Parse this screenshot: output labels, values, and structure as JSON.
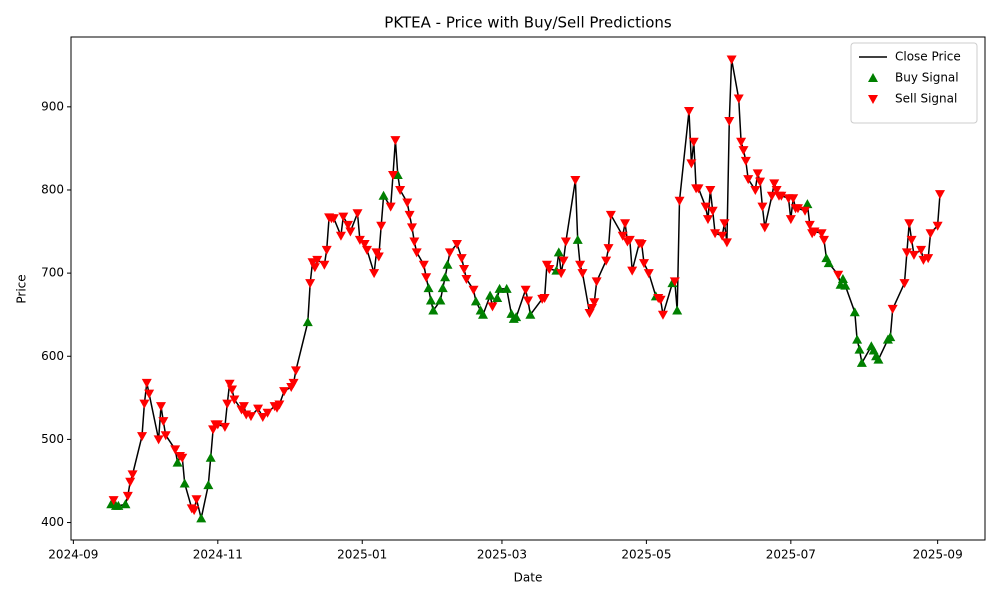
{
  "chart_data": {
    "type": "line",
    "title": "PKTEA - Price with Buy/Sell Predictions",
    "xlabel": "Date",
    "ylabel": "Price",
    "legend": "upper right",
    "xlim": [
      "2024-08-31",
      "2025-09-21"
    ],
    "ylim": [
      379,
      984
    ],
    "xticks": [
      {
        "value": "2024-09-01",
        "label": "2024-09"
      },
      {
        "value": "2024-11-01",
        "label": "2024-11"
      },
      {
        "value": "2025-01-01",
        "label": "2025-01"
      },
      {
        "value": "2025-03-01",
        "label": "2025-03"
      },
      {
        "value": "2025-05-01",
        "label": "2025-05"
      },
      {
        "value": "2025-07-01",
        "label": "2025-07"
      },
      {
        "value": "2025-09-01",
        "label": "2025-09"
      }
    ],
    "yticks": [
      400,
      500,
      600,
      700,
      800,
      900
    ],
    "series": [
      {
        "name": "Close Price",
        "color": "#000000",
        "marker": "line",
        "x": [
          "2024-09-17",
          "2024-09-18",
          "2024-09-19",
          "2024-09-20",
          "2024-09-23",
          "2024-09-24",
          "2024-09-25",
          "2024-09-26",
          "2024-09-30",
          "2024-10-01",
          "2024-10-02",
          "2024-10-03",
          "2024-10-07",
          "2024-10-08",
          "2024-10-09",
          "2024-10-10",
          "2024-10-14",
          "2024-10-15",
          "2024-10-16",
          "2024-10-17",
          "2024-10-18",
          "2024-10-21",
          "2024-10-22",
          "2024-10-23",
          "2024-10-25",
          "2024-10-28",
          "2024-10-29",
          "2024-10-30",
          "2024-10-31",
          "2024-11-01",
          "2024-11-04",
          "2024-11-05",
          "2024-11-06",
          "2024-11-07",
          "2024-11-08",
          "2024-11-11",
          "2024-11-12",
          "2024-11-13",
          "2024-11-15",
          "2024-11-18",
          "2024-11-20",
          "2024-11-22",
          "2024-11-25",
          "2024-11-26",
          "2024-11-27",
          "2024-11-29",
          "2024-12-02",
          "2024-12-03",
          "2024-12-04",
          "2024-12-09",
          "2024-12-10",
          "2024-12-11",
          "2024-12-12",
          "2024-12-13",
          "2024-12-16",
          "2024-12-17",
          "2024-12-18",
          "2024-12-19",
          "2024-12-20",
          "2024-12-23",
          "2024-12-24",
          "2024-12-26",
          "2024-12-27",
          "2024-12-30",
          "2024-12-31",
          "2025-01-02",
          "2025-01-03",
          "2025-01-06",
          "2025-01-07",
          "2025-01-08",
          "2025-01-09",
          "2025-01-10",
          "2025-01-13",
          "2025-01-14",
          "2025-01-15",
          "2025-01-16",
          "2025-01-17",
          "2025-01-20",
          "2025-01-21",
          "2025-01-22",
          "2025-01-23",
          "2025-01-24",
          "2025-01-27",
          "2025-01-28",
          "2025-01-29",
          "2025-01-30",
          "2025-01-31",
          "2025-02-03",
          "2025-02-04",
          "2025-02-05",
          "2025-02-06",
          "2025-02-07",
          "2025-02-10",
          "2025-02-12",
          "2025-02-13",
          "2025-02-14",
          "2025-02-17",
          "2025-02-18",
          "2025-02-20",
          "2025-02-21",
          "2025-02-24",
          "2025-02-25",
          "2025-02-27",
          "2025-02-28",
          "2025-03-03",
          "2025-03-05",
          "2025-03-06",
          "2025-03-07",
          "2025-03-11",
          "2025-03-12",
          "2025-03-13",
          "2025-03-18",
          "2025-03-19",
          "2025-03-20",
          "2025-03-21",
          "2025-03-24",
          "2025-03-25",
          "2025-03-26",
          "2025-03-27",
          "2025-03-28",
          "2025-04-01",
          "2025-04-02",
          "2025-04-03",
          "2025-04-04",
          "2025-04-07",
          "2025-04-08",
          "2025-04-09",
          "2025-04-10",
          "2025-04-14",
          "2025-04-15",
          "2025-04-16",
          "2025-04-21",
          "2025-04-22",
          "2025-04-23",
          "2025-04-24",
          "2025-04-25",
          "2025-04-28",
          "2025-04-29",
          "2025-04-30",
          "2025-05-02",
          "2025-05-05",
          "2025-05-06",
          "2025-05-07",
          "2025-05-08",
          "2025-05-12",
          "2025-05-13",
          "2025-05-14",
          "2025-05-15",
          "2025-05-19",
          "2025-05-20",
          "2025-05-21",
          "2025-05-22",
          "2025-05-23",
          "2025-05-26",
          "2025-05-27",
          "2025-05-28",
          "2025-05-29",
          "2025-05-30",
          "2025-06-02",
          "2025-06-03",
          "2025-06-04",
          "2025-06-05",
          "2025-06-06",
          "2025-06-09",
          "2025-06-10",
          "2025-06-11",
          "2025-06-12",
          "2025-06-13",
          "2025-06-16",
          "2025-06-17",
          "2025-06-18",
          "2025-06-19",
          "2025-06-20",
          "2025-06-23",
          "2025-06-24",
          "2025-06-25",
          "2025-06-26",
          "2025-06-27",
          "2025-06-30",
          "2025-07-01",
          "2025-07-02",
          "2025-07-03",
          "2025-07-04",
          "2025-07-07",
          "2025-07-08",
          "2025-07-09",
          "2025-07-10",
          "2025-07-11",
          "2025-07-14",
          "2025-07-15",
          "2025-07-16",
          "2025-07-17",
          "2025-07-21",
          "2025-07-22",
          "2025-07-23",
          "2025-07-24",
          "2025-07-28",
          "2025-07-29",
          "2025-07-30",
          "2025-07-31",
          "2025-08-04",
          "2025-08-05",
          "2025-08-06",
          "2025-08-07",
          "2025-08-11",
          "2025-08-12",
          "2025-08-13",
          "2025-08-18",
          "2025-08-19",
          "2025-08-20",
          "2025-08-21",
          "2025-08-22",
          "2025-08-25",
          "2025-08-26",
          "2025-08-28",
          "2025-08-29",
          "2025-09-01",
          "2025-09-02"
        ],
        "values": [
          422,
          427,
          420,
          420,
          422,
          432,
          449,
          458,
          504,
          543,
          568,
          555,
          500,
          540,
          522,
          505,
          488,
          472,
          480,
          478,
          447,
          417,
          415,
          428,
          405,
          445,
          478,
          512,
          518,
          518,
          515,
          543,
          567,
          560,
          548,
          536,
          540,
          530,
          528,
          537,
          527,
          532,
          540,
          538,
          542,
          558,
          563,
          568,
          583,
          641,
          688,
          713,
          707,
          716,
          710,
          728,
          767,
          766,
          766,
          745,
          768,
          758,
          750,
          772,
          740,
          735,
          728,
          700,
          725,
          720,
          757,
          793,
          780,
          818,
          860,
          818,
          800,
          785,
          770,
          755,
          738,
          725,
          710,
          695,
          682,
          667,
          655,
          667,
          682,
          695,
          710,
          725,
          735,
          718,
          705,
          693,
          680,
          666,
          655,
          650,
          673,
          660,
          670,
          681,
          681,
          651,
          645,
          647,
          680,
          667,
          650,
          669,
          670,
          710,
          705,
          703,
          725,
          700,
          715,
          738,
          812,
          740,
          710,
          700,
          652,
          658,
          665,
          690,
          715,
          730,
          770,
          745,
          760,
          738,
          740,
          703,
          736,
          735,
          712,
          700,
          672,
          670,
          668,
          650,
          688,
          690,
          655,
          787,
          895,
          832,
          858,
          802,
          802,
          780,
          765,
          800,
          775,
          748,
          745,
          760,
          737,
          883,
          957,
          910,
          858,
          848,
          835,
          813,
          800,
          820,
          810,
          780,
          755,
          793,
          808,
          800,
          793,
          793,
          790,
          765,
          790,
          778,
          778,
          775,
          783,
          758,
          748,
          750,
          748,
          740,
          718,
          712,
          698,
          686,
          693,
          685,
          653,
          620,
          608,
          592,
          612,
          607,
          600,
          596,
          620,
          623,
          657,
          688,
          725,
          760,
          740,
          722,
          728,
          716,
          718,
          748,
          757,
          795
        ]
      },
      {
        "name": "Buy Signal",
        "color": "#008000",
        "marker": "^",
        "x": [
          "2024-09-17",
          "2024-09-19",
          "2024-09-20",
          "2024-09-23",
          "2024-10-15",
          "2024-10-18",
          "2024-10-25",
          "2024-10-28",
          "2024-10-29",
          "2024-12-09",
          "2025-01-10",
          "2025-01-16",
          "2025-01-29",
          "2025-01-30",
          "2025-01-31",
          "2025-02-03",
          "2025-02-04",
          "2025-02-05",
          "2025-02-06",
          "2025-02-18",
          "2025-02-20",
          "2025-02-21",
          "2025-02-24",
          "2025-02-27",
          "2025-02-28",
          "2025-03-03",
          "2025-03-05",
          "2025-03-06",
          "2025-03-07",
          "2025-03-13",
          "2025-03-24",
          "2025-03-25",
          "2025-04-02",
          "2025-05-05",
          "2025-05-12",
          "2025-05-14",
          "2025-07-08",
          "2025-07-16",
          "2025-07-17",
          "2025-07-22",
          "2025-07-23",
          "2025-07-24",
          "2025-07-28",
          "2025-07-29",
          "2025-07-30",
          "2025-07-31",
          "2025-08-04",
          "2025-08-05",
          "2025-08-06",
          "2025-08-07",
          "2025-08-11",
          "2025-08-12"
        ],
        "values": [
          422,
          420,
          420,
          422,
          472,
          447,
          405,
          445,
          478,
          641,
          793,
          818,
          682,
          667,
          655,
          667,
          682,
          695,
          710,
          666,
          655,
          650,
          673,
          670,
          681,
          681,
          651,
          645,
          647,
          650,
          703,
          725,
          740,
          672,
          688,
          655,
          783,
          718,
          712,
          686,
          693,
          685,
          653,
          620,
          608,
          592,
          612,
          607,
          600,
          596,
          620,
          623
        ]
      },
      {
        "name": "Sell Signal",
        "color": "#ff0000",
        "marker": "v",
        "x": [
          "2024-09-18",
          "2024-09-24",
          "2024-09-25",
          "2024-09-26",
          "2024-09-30",
          "2024-10-01",
          "2024-10-02",
          "2024-10-03",
          "2024-10-07",
          "2024-10-08",
          "2024-10-09",
          "2024-10-10",
          "2024-10-14",
          "2024-10-16",
          "2024-10-17",
          "2024-10-21",
          "2024-10-22",
          "2024-10-23",
          "2024-10-30",
          "2024-10-31",
          "2024-11-01",
          "2024-11-04",
          "2024-11-05",
          "2024-11-06",
          "2024-11-07",
          "2024-11-08",
          "2024-11-11",
          "2024-11-12",
          "2024-11-13",
          "2024-11-15",
          "2024-11-18",
          "2024-11-20",
          "2024-11-22",
          "2024-11-25",
          "2024-11-26",
          "2024-11-27",
          "2024-11-29",
          "2024-12-02",
          "2024-12-03",
          "2024-12-04",
          "2024-12-10",
          "2024-12-11",
          "2024-12-12",
          "2024-12-13",
          "2024-12-16",
          "2024-12-17",
          "2024-12-18",
          "2024-12-19",
          "2024-12-20",
          "2024-12-23",
          "2024-12-24",
          "2024-12-26",
          "2024-12-27",
          "2024-12-30",
          "2024-12-31",
          "2025-01-02",
          "2025-01-03",
          "2025-01-06",
          "2025-01-07",
          "2025-01-08",
          "2025-01-09",
          "2025-01-13",
          "2025-01-14",
          "2025-01-15",
          "2025-01-17",
          "2025-01-20",
          "2025-01-21",
          "2025-01-22",
          "2025-01-23",
          "2025-01-24",
          "2025-01-27",
          "2025-01-28",
          "2025-02-07",
          "2025-02-10",
          "2025-02-12",
          "2025-02-13",
          "2025-02-14",
          "2025-02-17",
          "2025-02-25",
          "2025-03-11",
          "2025-03-12",
          "2025-03-18",
          "2025-03-19",
          "2025-03-20",
          "2025-03-21",
          "2025-03-26",
          "2025-03-27",
          "2025-03-28",
          "2025-04-01",
          "2025-04-03",
          "2025-04-04",
          "2025-04-07",
          "2025-04-08",
          "2025-04-09",
          "2025-04-10",
          "2025-04-14",
          "2025-04-15",
          "2025-04-16",
          "2025-04-21",
          "2025-04-22",
          "2025-04-23",
          "2025-04-24",
          "2025-04-25",
          "2025-04-28",
          "2025-04-29",
          "2025-04-30",
          "2025-05-02",
          "2025-05-06",
          "2025-05-07",
          "2025-05-08",
          "2025-05-13",
          "2025-05-15",
          "2025-05-19",
          "2025-05-20",
          "2025-05-21",
          "2025-05-22",
          "2025-05-23",
          "2025-05-26",
          "2025-05-27",
          "2025-05-28",
          "2025-05-29",
          "2025-05-30",
          "2025-06-02",
          "2025-06-03",
          "2025-06-04",
          "2025-06-05",
          "2025-06-06",
          "2025-06-09",
          "2025-06-10",
          "2025-06-11",
          "2025-06-12",
          "2025-06-13",
          "2025-06-16",
          "2025-06-17",
          "2025-06-18",
          "2025-06-19",
          "2025-06-20",
          "2025-06-23",
          "2025-06-24",
          "2025-06-25",
          "2025-06-26",
          "2025-06-27",
          "2025-06-30",
          "2025-07-01",
          "2025-07-02",
          "2025-07-03",
          "2025-07-04",
          "2025-07-07",
          "2025-07-09",
          "2025-07-10",
          "2025-07-11",
          "2025-07-14",
          "2025-07-15",
          "2025-07-21",
          "2025-08-13",
          "2025-08-18",
          "2025-08-19",
          "2025-08-20",
          "2025-08-21",
          "2025-08-22",
          "2025-08-25",
          "2025-08-26",
          "2025-08-28",
          "2025-08-29",
          "2025-09-01",
          "2025-09-02"
        ],
        "values": [
          427,
          432,
          449,
          458,
          504,
          543,
          568,
          555,
          500,
          540,
          522,
          505,
          488,
          480,
          478,
          417,
          415,
          428,
          512,
          518,
          518,
          515,
          543,
          567,
          560,
          548,
          536,
          540,
          530,
          528,
          537,
          527,
          532,
          540,
          538,
          542,
          558,
          563,
          568,
          583,
          688,
          713,
          707,
          716,
          710,
          728,
          767,
          766,
          766,
          745,
          768,
          758,
          750,
          772,
          740,
          735,
          728,
          700,
          725,
          720,
          757,
          780,
          818,
          860,
          800,
          785,
          770,
          755,
          738,
          725,
          710,
          695,
          725,
          735,
          718,
          705,
          693,
          680,
          660,
          680,
          667,
          669,
          670,
          710,
          705,
          700,
          715,
          738,
          812,
          710,
          700,
          652,
          658,
          665,
          690,
          715,
          730,
          770,
          745,
          760,
          738,
          740,
          703,
          736,
          735,
          712,
          700,
          670,
          668,
          650,
          690,
          787,
          895,
          832,
          858,
          802,
          802,
          780,
          765,
          800,
          775,
          748,
          745,
          760,
          737,
          883,
          957,
          910,
          858,
          848,
          835,
          813,
          800,
          820,
          810,
          780,
          755,
          793,
          808,
          800,
          793,
          793,
          790,
          765,
          790,
          778,
          778,
          775,
          758,
          748,
          750,
          748,
          740,
          698,
          657,
          688,
          725,
          760,
          740,
          722,
          728,
          716,
          718,
          748,
          757,
          795
        ]
      }
    ]
  }
}
